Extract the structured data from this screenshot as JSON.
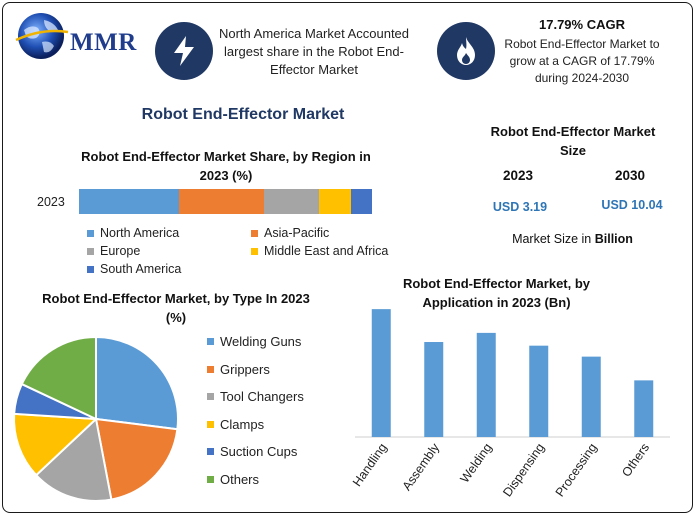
{
  "logo": {
    "text": "MMR"
  },
  "highlight1": {
    "icon": "lightning-icon",
    "text": "North America Market Accounted largest share in the Robot End-Effector Market"
  },
  "highlight2": {
    "icon": "flame-icon",
    "cagr": "17.79% CAGR",
    "text": "Robot End-Effector Market to grow at a CAGR of 17.79% during 2024-2030"
  },
  "main_title": "Robot End-Effector Market",
  "market_size": {
    "title": "Robot End-Effector Market Size",
    "year1": "2023",
    "year2": "2030",
    "value1": "USD 3.19",
    "value2": "USD 10.04",
    "note_prefix": "Market Size in ",
    "note_bold": "Billion"
  },
  "colors": {
    "blue": "#5b9bd5",
    "orange": "#ed7d31",
    "gray": "#a5a5a5",
    "yellow": "#ffc000",
    "darkblue": "#4472c4",
    "green": "#70ad47",
    "navy": "#203864"
  },
  "chart_data": [
    {
      "type": "bar",
      "orientation": "horizontal-stacked",
      "title": "Robot End-Effector Market Share, by Region in 2023 (%)",
      "categories": [
        "2023"
      ],
      "series": [
        {
          "name": "North America",
          "values": [
            34
          ],
          "color": "#5b9bd5"
        },
        {
          "name": "Asia-Pacific",
          "values": [
            29
          ],
          "color": "#ed7d31"
        },
        {
          "name": "Europe",
          "values": [
            19
          ],
          "color": "#a5a5a5"
        },
        {
          "name": "Middle East and Africa",
          "values": [
            11
          ],
          "color": "#ffc000"
        },
        {
          "name": "South America",
          "values": [
            7
          ],
          "color": "#4472c4"
        }
      ],
      "legend": "bottom"
    },
    {
      "type": "pie",
      "title": "Robot End-Effector Market, by Type In 2023 (%)",
      "labels": [
        "Welding Guns",
        "Grippers",
        "Tool Changers",
        "Clamps",
        "Suction Cups",
        "Others"
      ],
      "values": [
        27,
        20,
        16,
        13,
        6,
        18
      ],
      "colors": [
        "#5b9bd5",
        "#ed7d31",
        "#a5a5a5",
        "#ffc000",
        "#4472c4",
        "#70ad47"
      ],
      "legend": "right"
    },
    {
      "type": "bar",
      "title": "Robot End-Effector Market, by Application in 2023 (Bn)",
      "categories": [
        "Handling",
        "Assembly",
        "Welding",
        "Dispensing",
        "Processing",
        "Others"
      ],
      "values": [
        0.7,
        0.52,
        0.57,
        0.5,
        0.44,
        0.31
      ],
      "color": "#5b9bd5",
      "ylim": [
        0,
        0.75
      ]
    }
  ]
}
